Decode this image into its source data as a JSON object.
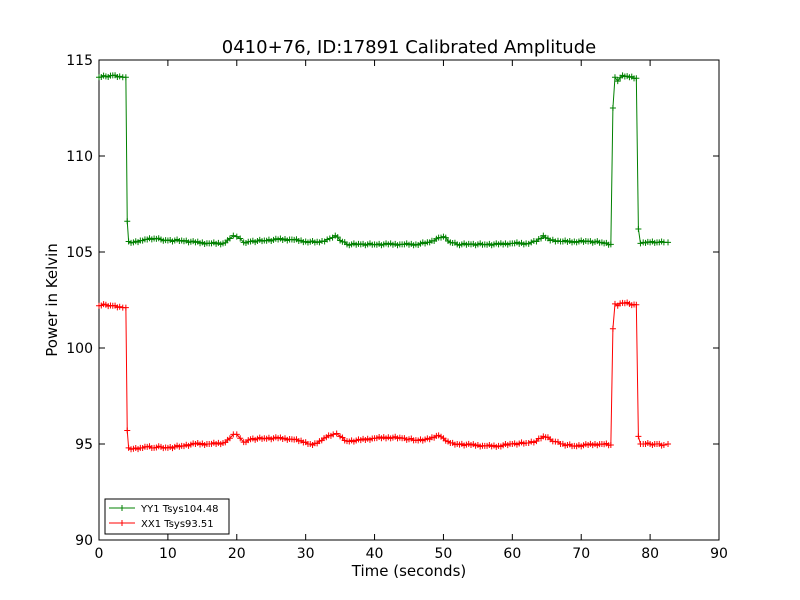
{
  "chart_data": {
    "type": "line",
    "title": "0410+76, ID:17891 Calibrated Amplitude",
    "xlabel": "Time (seconds)",
    "ylabel": "Power in Kelvin",
    "xlim": [
      0,
      90
    ],
    "ylim": [
      90,
      115
    ],
    "xticks": [
      0,
      10,
      20,
      30,
      40,
      50,
      60,
      70,
      80,
      90
    ],
    "yticks": [
      90,
      95,
      100,
      105,
      110,
      115
    ],
    "grid": false,
    "legend_position": "lower-left",
    "marker": "+",
    "series": [
      {
        "name": "YY1 Tsys104.48",
        "color": "#008000",
        "x": [
          0,
          1,
          2,
          3,
          3.9,
          4.1,
          4.3,
          5,
          6,
          7,
          8,
          9,
          10,
          12,
          14,
          16,
          18,
          19,
          19.5,
          20,
          20.5,
          21,
          22,
          24,
          26,
          28,
          30,
          32,
          33.5,
          34.3,
          35,
          36,
          38,
          40,
          42,
          44,
          46,
          48,
          49.3,
          50,
          51,
          52,
          54,
          56,
          58,
          60,
          62,
          63.5,
          64.5,
          65.5,
          67,
          69,
          71,
          73,
          74.3,
          74.6,
          74.9,
          75.3,
          76,
          77,
          78,
          78.3,
          78.6,
          79,
          80,
          81,
          82,
          82.6
        ],
        "values": [
          114.1,
          114.15,
          114.2,
          114.15,
          114.1,
          106.6,
          105.55,
          105.5,
          105.6,
          105.65,
          105.7,
          105.65,
          105.6,
          105.6,
          105.5,
          105.45,
          105.45,
          105.7,
          105.85,
          105.8,
          105.7,
          105.5,
          105.55,
          105.6,
          105.65,
          105.65,
          105.55,
          105.5,
          105.7,
          105.85,
          105.6,
          105.4,
          105.4,
          105.4,
          105.4,
          105.4,
          105.4,
          105.5,
          105.75,
          105.8,
          105.5,
          105.4,
          105.4,
          105.4,
          105.4,
          105.45,
          105.45,
          105.55,
          105.85,
          105.6,
          105.55,
          105.55,
          105.55,
          105.5,
          105.4,
          112.5,
          114.1,
          113.9,
          114.2,
          114.1,
          114.05,
          106.2,
          105.45,
          105.5,
          105.5,
          105.5,
          105.5,
          105.5
        ]
      },
      {
        "name": "XX1 Tsys93.51",
        "color": "#ff0000",
        "x": [
          0,
          1,
          2,
          3,
          3.9,
          4.1,
          4.3,
          5,
          6,
          7,
          8,
          9,
          10,
          12,
          14,
          16,
          18,
          19,
          19.5,
          20,
          20.5,
          21,
          22,
          24,
          26,
          28,
          30,
          31,
          32,
          33,
          34,
          34.5,
          35,
          36,
          38,
          40,
          42,
          44,
          46,
          48,
          49.3,
          50,
          51,
          52,
          54,
          56,
          58,
          60,
          62,
          63.5,
          64.5,
          65.5,
          67,
          69,
          71,
          73,
          74.3,
          74.6,
          74.9,
          75.3,
          76,
          77,
          78,
          78.3,
          78.6,
          79,
          80,
          81,
          82,
          82.6
        ],
        "values": [
          102.2,
          102.25,
          102.2,
          102.15,
          102.1,
          95.7,
          94.8,
          94.75,
          94.8,
          94.85,
          94.8,
          94.85,
          94.8,
          94.9,
          95.0,
          95.0,
          95.05,
          95.3,
          95.5,
          95.5,
          95.3,
          95.1,
          95.25,
          95.3,
          95.3,
          95.25,
          95.1,
          94.95,
          95.15,
          95.35,
          95.5,
          95.55,
          95.4,
          95.15,
          95.2,
          95.3,
          95.35,
          95.3,
          95.2,
          95.25,
          95.45,
          95.3,
          95.05,
          95.0,
          94.95,
          94.9,
          94.9,
          95.0,
          95.05,
          95.15,
          95.4,
          95.25,
          95.0,
          94.9,
          94.95,
          95.0,
          94.95,
          101.0,
          102.3,
          102.2,
          102.35,
          102.3,
          102.25,
          95.4,
          95.0,
          95.0,
          95.0,
          95.0,
          94.95,
          95.0
        ]
      }
    ]
  }
}
